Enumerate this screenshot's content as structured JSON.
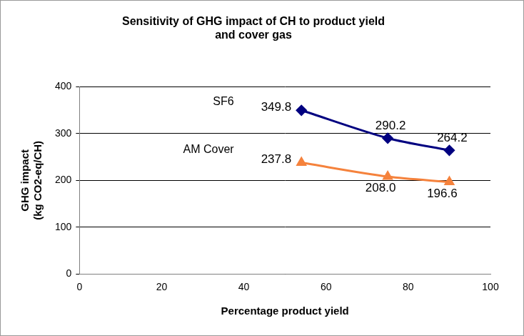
{
  "chart_data": {
    "type": "line",
    "title": [
      "Sensitivity of GHG impact of CH to product yield",
      "and cover gas"
    ],
    "x_label": "Percentage product yield",
    "y_label": [
      "GHG impact",
      "(kg CO2-eq/CH)"
    ],
    "x": [
      54,
      75,
      90
    ],
    "series": [
      {
        "name": "SF6",
        "color": "#000080",
        "marker": "diamond",
        "values": [
          349.8,
          290.2,
          264.2
        ],
        "value_labels": [
          "349.8",
          "290.2",
          "264.2"
        ]
      },
      {
        "name": "AM Cover",
        "color": "#f5823c",
        "marker": "triangle",
        "values": [
          237.8,
          208.0,
          196.6
        ],
        "value_labels": [
          "237.8",
          "208.0",
          "196.6"
        ]
      }
    ],
    "xlim": [
      0,
      100
    ],
    "xticks": [
      0,
      20,
      40,
      60,
      80,
      100
    ],
    "ylim": [
      0,
      400
    ],
    "yticks": [
      0,
      100,
      200,
      300,
      400
    ],
    "grid": true,
    "data_labels": true
  }
}
